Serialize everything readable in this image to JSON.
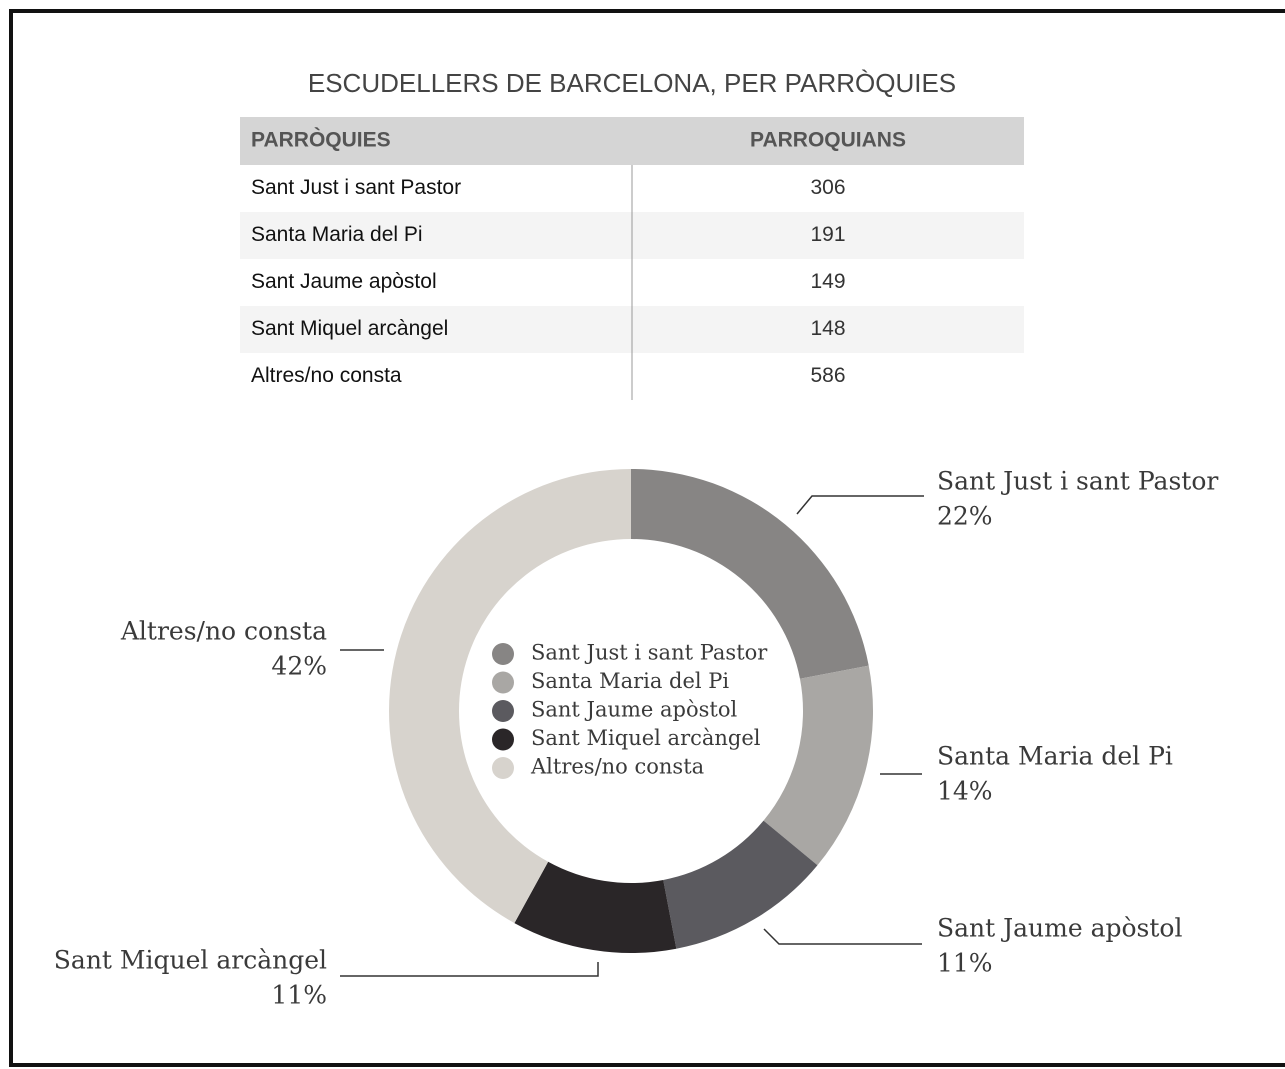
{
  "title": "ESCUDELLERS DE BARCELONA, PER PARRÒQUIES",
  "table": {
    "header": [
      "PARRÒQUIES",
      "PARROQUIANS"
    ],
    "rows": [
      [
        "Sant Just i sant Pastor",
        "306"
      ],
      [
        "Santa Maria del Pi",
        "191"
      ],
      [
        "Sant Jaume apòstol",
        "149"
      ],
      [
        "Sant Miquel arcàngel",
        "148"
      ],
      [
        "Altres/no consta",
        "586"
      ]
    ]
  },
  "chart_data": {
    "type": "pie",
    "donut": true,
    "categories": [
      "Sant Just i sant Pastor",
      "Santa Maria del Pi",
      "Sant Jaume apòstol",
      "Sant Miquel arcàngel",
      "Altres/no consta"
    ],
    "values": [
      22,
      14,
      11,
      11,
      42
    ],
    "value_labels": [
      "22%",
      "14%",
      "11%",
      "11%",
      "42%"
    ],
    "colors": [
      "#878584",
      "#a9a7a4",
      "#5b5a5f",
      "#2a2628",
      "#d7d3cd"
    ],
    "legend": "center"
  }
}
